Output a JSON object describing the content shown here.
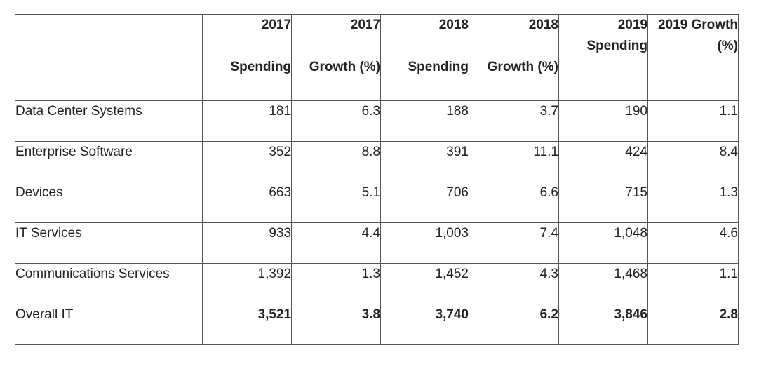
{
  "headers": {
    "category": "",
    "spending_2017": {
      "year": "2017",
      "label": "Spending"
    },
    "growth_2017": {
      "year": "2017",
      "label": "Growth (%)"
    },
    "spending_2018": {
      "year": "2018",
      "label": "Spending"
    },
    "growth_2018": {
      "year": "2018",
      "label": "Growth (%)"
    },
    "spending_2019": {
      "year": "2019",
      "label": "Spending"
    },
    "growth_2019": {
      "year": "2019 Growth",
      "label": "(%)"
    }
  },
  "rows": [
    {
      "category": "Data Center Systems",
      "sp17": "181",
      "gr17": "6.3",
      "sp18": "188",
      "gr18": "3.7",
      "sp19": "190",
      "gr19": "1.1"
    },
    {
      "category": "Enterprise Software",
      "sp17": "352",
      "gr17": "8.8",
      "sp18": "391",
      "gr18": "11.1",
      "sp19": "424",
      "gr19": "8.4"
    },
    {
      "category": "Devices",
      "sp17": "663",
      "gr17": "5.1",
      "sp18": "706",
      "gr18": "6.6",
      "sp19": "715",
      "gr19": "1.3"
    },
    {
      "category": "IT Services",
      "sp17": "933",
      "gr17": "4.4",
      "sp18": "1,003",
      "gr18": "7.4",
      "sp19": "1,048",
      "gr19": "4.6"
    },
    {
      "category": "Communications Services",
      "sp17": "1,392",
      "gr17": "1.3",
      "sp18": "1,452",
      "gr18": "4.3",
      "sp19": "1,468",
      "gr19": "1.1"
    }
  ],
  "total": {
    "category": "Overall IT",
    "sp17": "3,521",
    "gr17": "3.8",
    "sp18": "3,740",
    "gr18": "6.2",
    "sp19": "3,846",
    "gr19": "2.8"
  }
}
